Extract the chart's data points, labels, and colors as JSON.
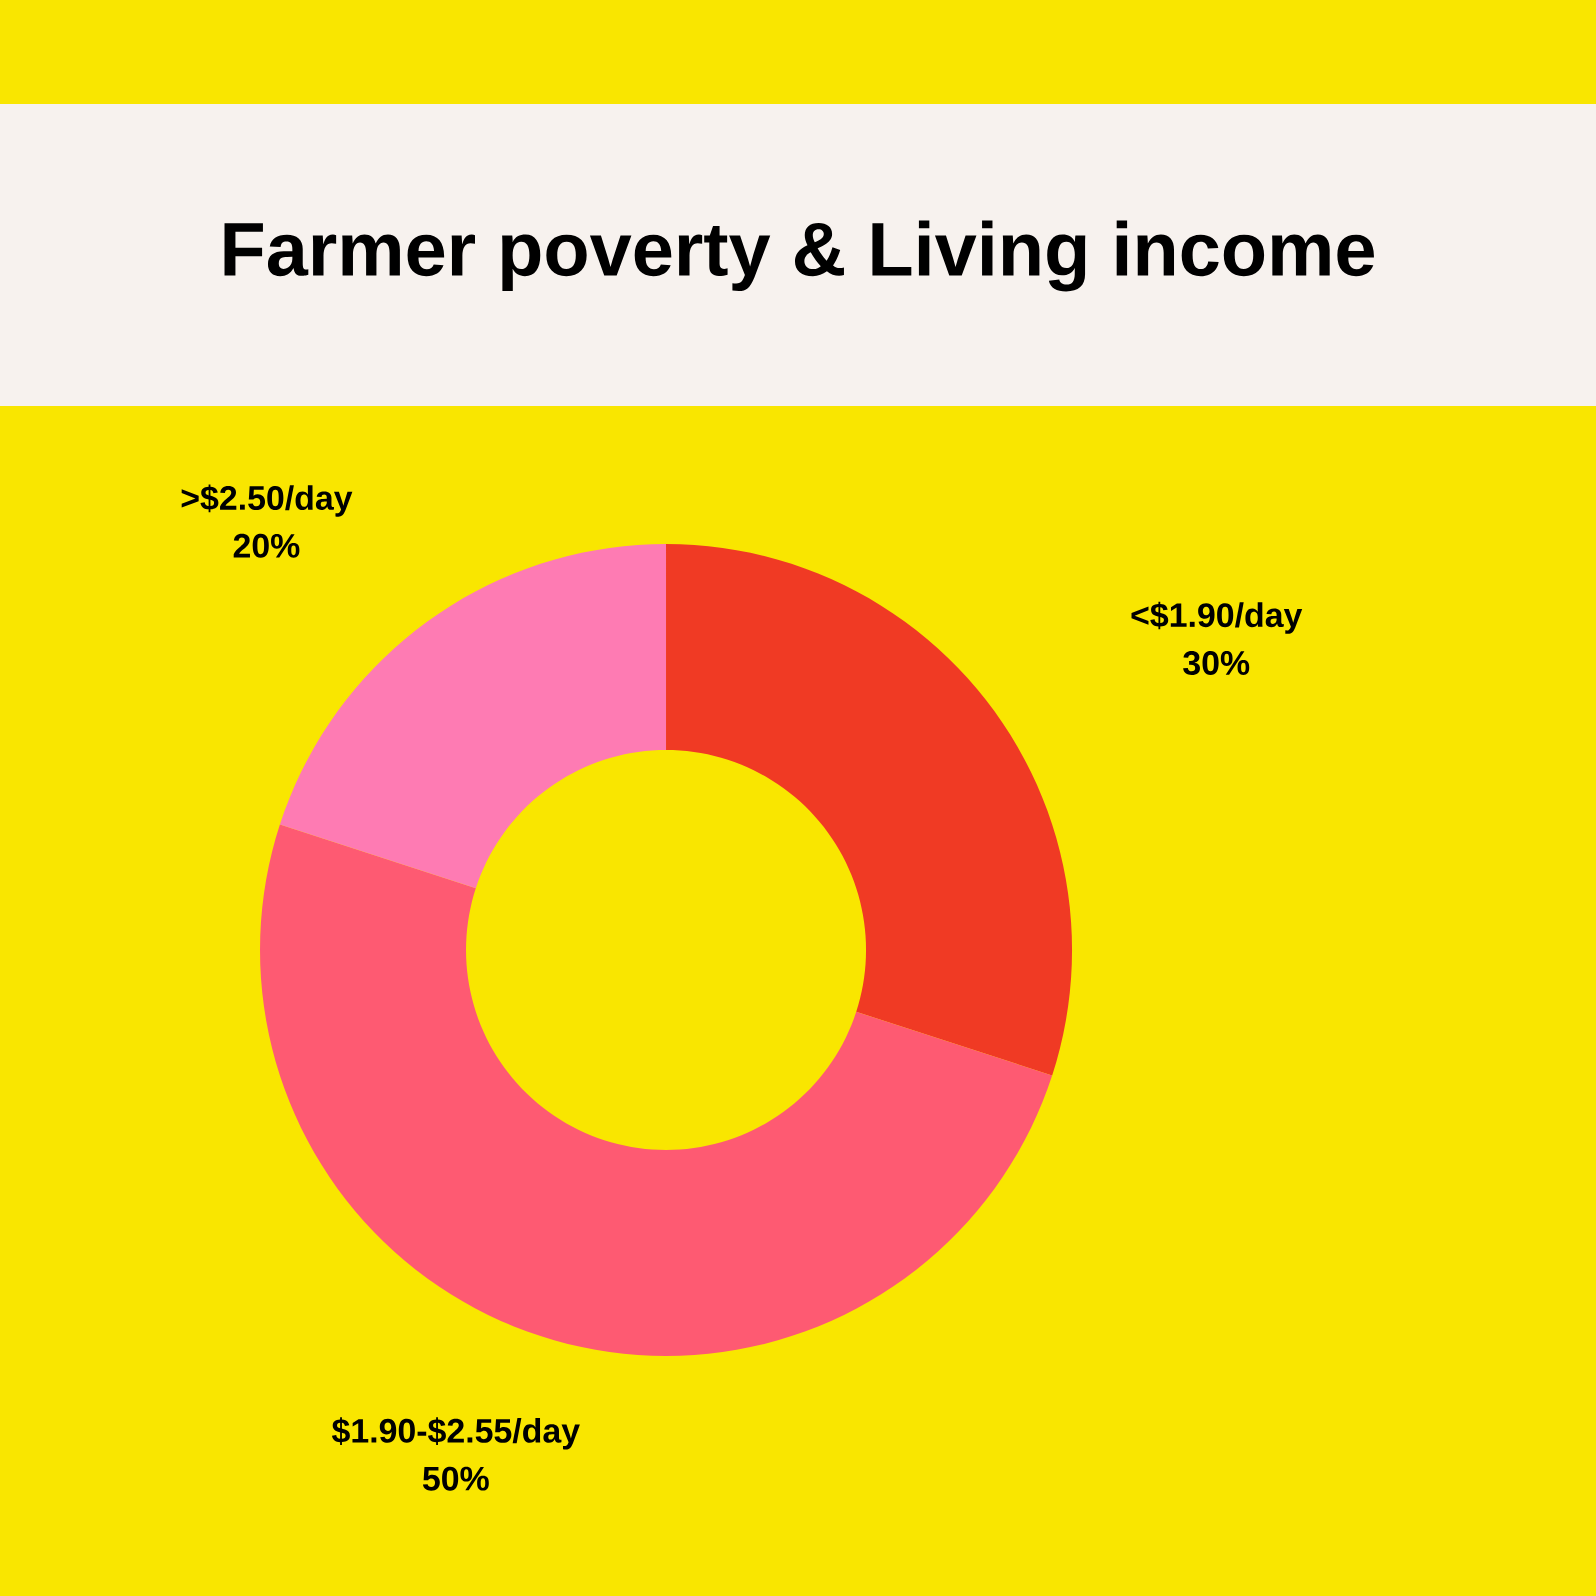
{
  "chart_data": {
    "type": "donut",
    "title": "Farmer poverty & Living income",
    "categories": [
      "<$1.90/day",
      "$1.90-$2.55/day",
      ">$2.50/day"
    ],
    "values": [
      30,
      50,
      20
    ],
    "colors": [
      "#f03a24",
      "#fe5a72",
      "#fe7bb3"
    ],
    "value_labels": [
      "30%",
      "50%",
      "20%"
    ]
  }
}
